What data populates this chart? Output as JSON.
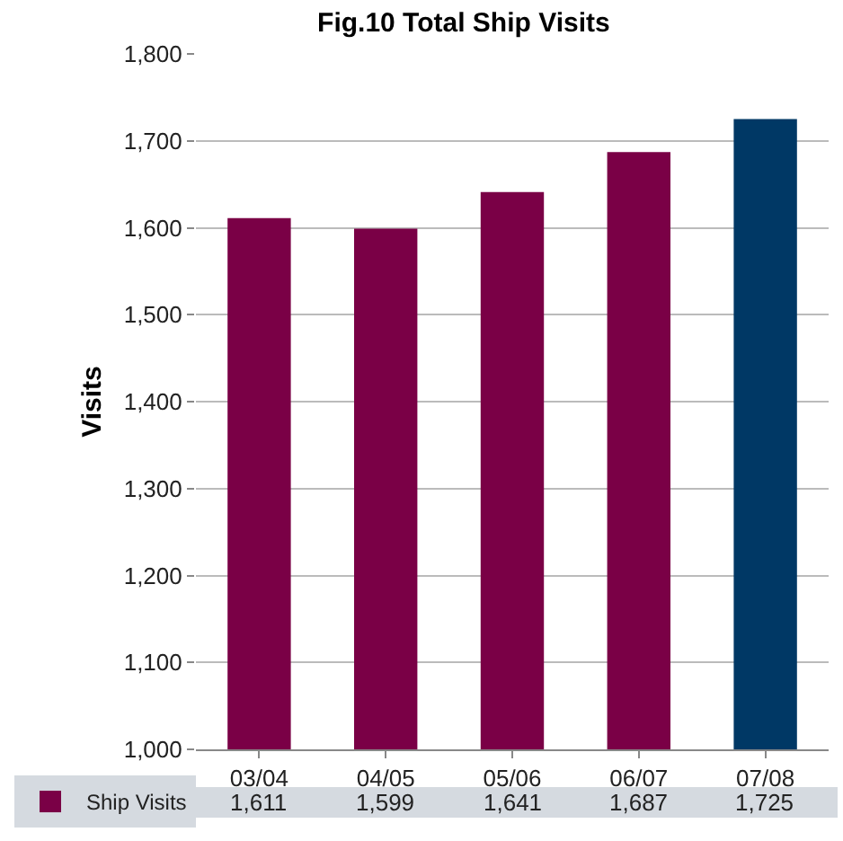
{
  "chart_data": {
    "type": "bar",
    "title": "Fig.10 Total Ship Visits",
    "ylabel": "Visits",
    "categories": [
      "03/04",
      "04/05",
      "05/06",
      "06/07",
      "07/08"
    ],
    "series": [
      {
        "name": "Ship Visits",
        "colors": [
          "#7a0046",
          "#7a0046",
          "#7a0046",
          "#7a0046",
          "#003865"
        ],
        "values": [
          1611,
          1599,
          1641,
          1687,
          1725
        ],
        "value_labels": [
          "1,611",
          "1,599",
          "1,641",
          "1,687",
          "1,725"
        ]
      }
    ],
    "ylim": [
      1000,
      1800
    ],
    "yticks": [
      {
        "value": 1000,
        "label": "1,000"
      },
      {
        "value": 1100,
        "label": "1,100"
      },
      {
        "value": 1200,
        "label": "1,200"
      },
      {
        "value": 1300,
        "label": "1,300"
      },
      {
        "value": 1400,
        "label": "1,400"
      },
      {
        "value": 1500,
        "label": "1,500"
      },
      {
        "value": 1600,
        "label": "1,600"
      },
      {
        "value": 1700,
        "label": "1,700"
      },
      {
        "value": 1800,
        "label": "1,800"
      }
    ],
    "grid": "y",
    "legend": "bottom left"
  }
}
